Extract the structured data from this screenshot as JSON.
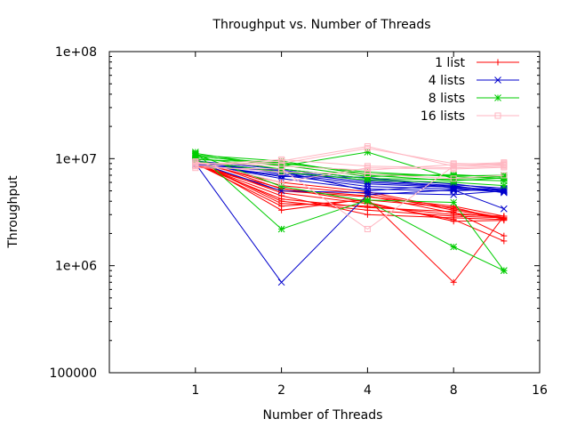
{
  "chart_data": {
    "type": "line",
    "title": "Throughput vs. Number of Threads",
    "xlabel": "Number of Threads",
    "ylabel": "Throughput",
    "x_scale": "log2",
    "y_scale": "log10",
    "xlim": [
      0.5,
      16
    ],
    "ylim": [
      100000,
      100000000
    ],
    "x_ticks": [
      1,
      2,
      4,
      8,
      16
    ],
    "x_tick_labels": [
      "1",
      "2",
      "4",
      "8",
      "16"
    ],
    "y_ticks": [
      100000,
      1000000,
      10000000,
      100000000
    ],
    "y_tick_labels": [
      "100000",
      "1e+06",
      "1e+07",
      "1e+08"
    ],
    "grid": false,
    "legend_position": "top-right",
    "x": [
      1,
      2,
      4,
      8,
      12
    ],
    "series": [
      {
        "name": "1 list",
        "color": "#ff0000",
        "marker": "plus",
        "lines": [
          [
            9500000,
            3300000,
            4200000,
            700000,
            2900000
          ],
          [
            9000000,
            3600000,
            4100000,
            3500000,
            2700000
          ],
          [
            8800000,
            4200000,
            3500000,
            3200000,
            1900000
          ],
          [
            9200000,
            4800000,
            3800000,
            2700000,
            1700000
          ],
          [
            9800000,
            5200000,
            4500000,
            3100000,
            2800000
          ],
          [
            9300000,
            4000000,
            3300000,
            2900000,
            2800000
          ],
          [
            8700000,
            5000000,
            4400000,
            3600000,
            2900000
          ],
          [
            9600000,
            5600000,
            4700000,
            3300000,
            2750000
          ],
          [
            8900000,
            4500000,
            3000000,
            2800000,
            2700000
          ],
          [
            9400000,
            3800000,
            3600000,
            3000000,
            2900000
          ],
          [
            9100000,
            6000000,
            4900000,
            3400000,
            2800000
          ],
          [
            8600000,
            5300000,
            3900000,
            2600000,
            2650000
          ]
        ]
      },
      {
        "name": "4 lists",
        "color": "#0000cc",
        "marker": "cross",
        "lines": [
          [
            9000000,
            700000,
            4600000,
            5100000,
            3400000
          ],
          [
            9200000,
            7500000,
            6000000,
            5500000,
            5000000
          ],
          [
            8800000,
            7000000,
            5500000,
            5200000,
            4900000
          ],
          [
            9500000,
            8000000,
            6500000,
            5800000,
            5100000
          ],
          [
            9100000,
            6500000,
            5200000,
            5000000,
            5200000
          ],
          [
            8700000,
            7800000,
            6200000,
            5600000,
            4800000
          ],
          [
            9300000,
            5000000,
            4800000,
            4600000,
            5000000
          ],
          [
            9600000,
            7200000,
            5800000,
            5400000,
            5100000
          ],
          [
            8900000,
            6800000,
            6700000,
            5300000,
            4900000
          ],
          [
            9400000,
            7600000,
            5000000,
            5700000,
            5300000
          ]
        ]
      },
      {
        "name": "8 lists",
        "color": "#00cc00",
        "marker": "star",
        "lines": [
          [
            11500000,
            2200000,
            4100000,
            3900000,
            900000
          ],
          [
            11000000,
            5500000,
            4000000,
            1500000,
            900000
          ],
          [
            10500000,
            9000000,
            7500000,
            6800000,
            6500000
          ],
          [
            11200000,
            8500000,
            11500000,
            6500000,
            6800000
          ],
          [
            10800000,
            9500000,
            7000000,
            6200000,
            6600000
          ],
          [
            10200000,
            8000000,
            6500000,
            6400000,
            6200000
          ],
          [
            9800000,
            9200000,
            7200000,
            6900000,
            7000000
          ],
          [
            10600000,
            8700000,
            6800000,
            7100000,
            6700000
          ],
          [
            9500000,
            7500000,
            6300000,
            6000000,
            5600000
          ]
        ]
      },
      {
        "name": "16 lists",
        "color": "#ffb6c1",
        "marker": "square",
        "lines": [
          [
            8500000,
            9500000,
            13000000,
            8500000,
            9000000
          ],
          [
            9000000,
            9000000,
            12500000,
            9000000,
            8800000
          ],
          [
            8200000,
            8000000,
            2200000,
            8500000,
            8700000
          ],
          [
            8800000,
            9800000,
            8500000,
            8200000,
            8500000
          ],
          [
            9200000,
            8500000,
            7800000,
            8800000,
            9200000
          ],
          [
            8600000,
            7500000,
            7200000,
            6500000,
            7000000
          ],
          [
            9400000,
            6000000,
            8200000,
            8000000,
            8300000
          ]
        ]
      }
    ]
  }
}
